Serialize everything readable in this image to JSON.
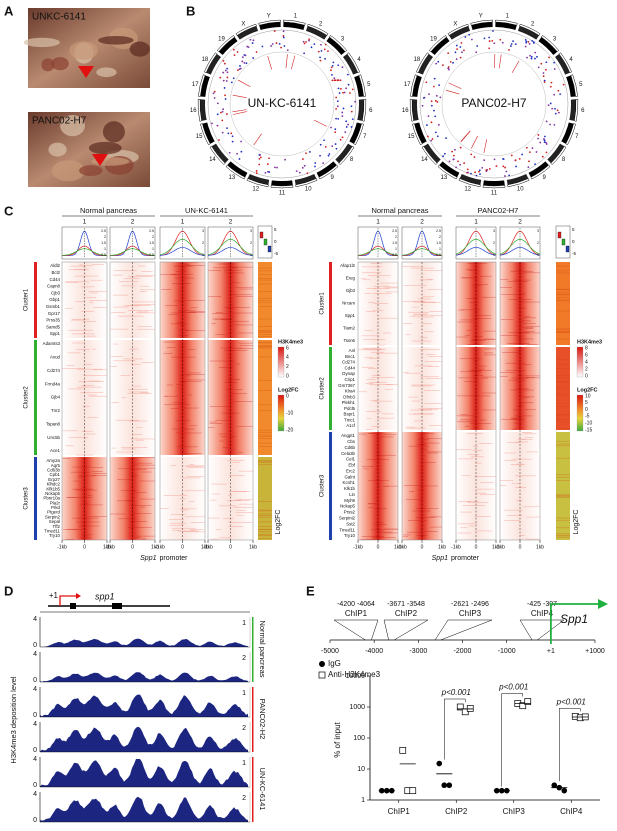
{
  "panels": {
    "a": {
      "label": "A",
      "photos": [
        "UNKC-6141",
        "PANC02-H7"
      ]
    },
    "b": {
      "label": "B",
      "plots": [
        "UN-KC-6141",
        "PANC02-H7"
      ],
      "chromosomes": [
        "1",
        "2",
        "3",
        "4",
        "5",
        "6",
        "7",
        "8",
        "9",
        "10",
        "11",
        "12",
        "13",
        "14",
        "15",
        "16",
        "17",
        "18",
        "19",
        "X",
        "Y"
      ]
    },
    "c": {
      "label": "C",
      "axis": [
        "-1kb",
        "0",
        "1kb"
      ],
      "promoter": [
        "Spp1",
        "promoter"
      ],
      "blocks": [
        {
          "groups": [
            "Normal pancreas",
            "UN-KC-6141"
          ],
          "replicates": [
            "1",
            "2"
          ],
          "profile_ticks": [
            [
              "2.5",
              "2",
              "1.5",
              "1",
              "0.5"
            ],
            [
              "3",
              "2",
              "1"
            ]
          ],
          "box_ticks": [
            "5",
            "0",
            "-5"
          ],
          "clusters": [
            {
              "name": "Cluster1",
              "genes": [
                "Aldl2",
                "Bcl2",
                "Cd44",
                "Capn8",
                "Cjb3",
                "Gbp1",
                "Gsmb1",
                "Gpr17",
                "Prss35",
                "Samd5",
                "Spp1"
              ]
            },
            {
              "name": "Cluster2",
              "genes": [
                "Adamts3",
                "Axud",
                "Cd274",
                "Frmd4a",
                "Gjb4",
                "Tnr2",
                "Tspan8",
                "Unc5b",
                "Ace1"
              ]
            },
            {
              "name": "Cluster3",
              "genes": [
                "Amy2a",
                "Aqr5",
                "Cd63b",
                "Cpb1",
                "Erp27",
                "Klhdc2",
                "Kfk1b5",
                "Nckap5",
                "Pbnr10a",
                "Pla2r",
                "Prkd",
                "Ptgerd",
                "Serpin2",
                "Sepal",
                "Tff2",
                "Tmed11",
                "Try10"
              ]
            }
          ],
          "heat_title": "H3K4me3",
          "heat_ticks": [
            "6",
            "4",
            "2",
            "0"
          ],
          "fc_title": "Log2FC",
          "fc_ticks": [
            "0",
            "-10",
            "-20"
          ],
          "fc_side": "Log2FC"
        },
        {
          "groups": [
            "Normal pancreas",
            "PANC02-H7"
          ],
          "replicates": [
            "1",
            "2"
          ],
          "profile_ticks": [
            [
              "2.5",
              "2",
              "1.5",
              "1",
              "0.5"
            ],
            [
              "3",
              "2",
              "1"
            ]
          ],
          "box_ticks": [
            "5",
            "0",
            "-5"
          ],
          "clusters": [
            {
              "name": "Cluster1",
              "genes": [
                "Afap1l2",
                "Ereg",
                "Gjb3",
                "Nrcam",
                "Spp1",
                "Tiam2",
                "Tssn6"
              ]
            },
            {
              "name": "Cluster2",
              "genes": [
                "Anl",
                "Bnc1",
                "Cd274",
                "Cd44",
                "Dynap",
                "Crip1",
                "Gm7367",
                "Klra4",
                "Dfnb3",
                "Plekh1",
                "Pdcl5",
                "Bspr1",
                "Tmc1",
                "A1cf"
              ]
            },
            {
              "name": "Cluster3",
              "genes": [
                "Angpt1",
                "Cbs",
                "Cd6b",
                "Cela3b",
                "Cel1",
                "Ebf",
                "Erc2",
                "Galnt",
                "Kcnh1",
                "Klk1b",
                "Lin",
                "Myh9",
                "Nckap5",
                "Prss2",
                "Serpini2",
                "Sst2",
                "Tmed11",
                "Try10"
              ]
            }
          ],
          "heat_title": "H3K4me3",
          "heat_ticks": [
            "8",
            "6",
            "4",
            "2",
            "0"
          ],
          "fc_title": "Log2FC",
          "fc_ticks": [
            "10",
            "5",
            "0",
            "-5",
            "-10",
            "-15"
          ],
          "fc_side": "Log2FC"
        }
      ]
    },
    "d": {
      "label": "D",
      "tss": "+1",
      "gene": "spp1",
      "ylabel": "H3K4me3 deposition level",
      "yticks": [
        "0",
        "4"
      ],
      "groups": [
        "Normal pancreas",
        "PANC02-H2",
        "UN-KC-6141"
      ],
      "replicates": [
        "1",
        "2"
      ]
    },
    "e": {
      "label": "E",
      "gene": "Spp1",
      "scale": [
        -5000,
        -4000,
        -3000,
        -2000,
        -1000,
        {
          "value": 1,
          "label": "+1"
        },
        {
          "value": 1000,
          "label": "+1000"
        }
      ],
      "regions": [
        {
          "name": "ChIP1",
          "start": -4200,
          "end": -4064
        },
        {
          "name": "ChIP2",
          "start": -3671,
          "end": -3548
        },
        {
          "name": "ChIP3",
          "start": -2621,
          "end": -2496
        },
        {
          "name": "ChIP4",
          "start": -425,
          "end": -307
        }
      ]
    }
  },
  "chart_data": {
    "type": "scatter",
    "categories": [
      "ChIP1",
      "ChIP2",
      "ChIP3",
      "ChIP4"
    ],
    "ylabel": "% of input",
    "log_scale": true,
    "ylim": [
      1,
      10000
    ],
    "yticks": [
      1,
      10,
      100,
      1000,
      10000
    ],
    "legend": "top-left",
    "series": [
      {
        "name": "IgG",
        "color": "#000000",
        "marker": "circle",
        "values": [
          [
            2,
            2,
            2
          ],
          [
            15,
            3,
            3
          ],
          [
            2,
            2,
            2
          ],
          [
            3,
            2.5,
            2
          ]
        ]
      },
      {
        "name": "Anti-H3K4me3",
        "color": "#000000",
        "marker": "square",
        "values": [
          [
            40,
            2,
            2
          ],
          [
            1000,
            700,
            900
          ],
          [
            1300,
            1100,
            1500
          ],
          [
            500,
            450,
            480
          ]
        ]
      }
    ],
    "annotations": [
      "p<0.001",
      "p<0.001",
      "p<0.001"
    ]
  }
}
